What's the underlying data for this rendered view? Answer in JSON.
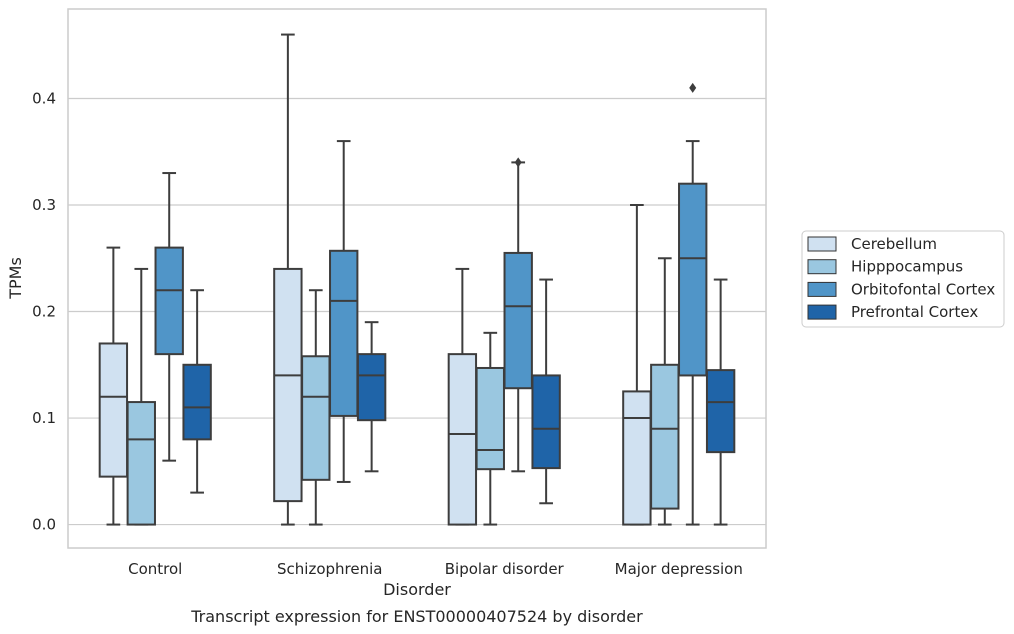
{
  "chart_data": {
    "type": "box",
    "caption": "Transcript expression for ENST00000407524 by disorder",
    "xlabel": "Disorder",
    "ylabel": "TPMs",
    "ylim": [
      -0.022,
      0.484
    ],
    "yticks": [
      0.0,
      0.1,
      0.2,
      0.3,
      0.4
    ],
    "ytick_labels": [
      "0.0",
      "0.1",
      "0.2",
      "0.3",
      "0.4"
    ],
    "grid": "horizontal",
    "legend_position": "right",
    "categories": [
      "Control",
      "Schizophrenia",
      "Bipolar disorder",
      "Major depression"
    ],
    "series": [
      {
        "name": "Cerebellum",
        "color": "#d0e1f1",
        "boxes": [
          {
            "whisker_low": 0.0,
            "q1": 0.045,
            "median": 0.12,
            "q3": 0.17,
            "whisker_high": 0.26,
            "outliers": []
          },
          {
            "whisker_low": 0.0,
            "q1": 0.022,
            "median": 0.14,
            "q3": 0.24,
            "whisker_high": 0.46,
            "outliers": []
          },
          {
            "whisker_low": 0.0,
            "q1": 0.0,
            "median": 0.085,
            "q3": 0.16,
            "whisker_high": 0.24,
            "outliers": []
          },
          {
            "whisker_low": 0.0,
            "q1": 0.0,
            "median": 0.1,
            "q3": 0.125,
            "whisker_high": 0.3,
            "outliers": []
          }
        ]
      },
      {
        "name": "Hipppocampus",
        "color": "#9ac7e0",
        "boxes": [
          {
            "whisker_low": 0.0,
            "q1": 0.0,
            "median": 0.08,
            "q3": 0.115,
            "whisker_high": 0.24,
            "outliers": []
          },
          {
            "whisker_low": 0.0,
            "q1": 0.042,
            "median": 0.12,
            "q3": 0.158,
            "whisker_high": 0.22,
            "outliers": []
          },
          {
            "whisker_low": 0.0,
            "q1": 0.052,
            "median": 0.07,
            "q3": 0.147,
            "whisker_high": 0.18,
            "outliers": []
          },
          {
            "whisker_low": 0.0,
            "q1": 0.015,
            "median": 0.09,
            "q3": 0.15,
            "whisker_high": 0.25,
            "outliers": []
          }
        ]
      },
      {
        "name": "Orbitofontal Cortex",
        "color": "#5095c8",
        "boxes": [
          {
            "whisker_low": 0.06,
            "q1": 0.16,
            "median": 0.22,
            "q3": 0.26,
            "whisker_high": 0.33,
            "outliers": []
          },
          {
            "whisker_low": 0.04,
            "q1": 0.102,
            "median": 0.21,
            "q3": 0.257,
            "whisker_high": 0.36,
            "outliers": []
          },
          {
            "whisker_low": 0.05,
            "q1": 0.128,
            "median": 0.205,
            "q3": 0.255,
            "whisker_high": 0.34,
            "outliers": []
          },
          {
            "whisker_low": 0.0,
            "q1": 0.14,
            "median": 0.25,
            "q3": 0.32,
            "whisker_high": 0.36,
            "outliers": []
          }
        ]
      },
      {
        "name": "Prefrontal Cortex",
        "color": "#1f64a8",
        "boxes": [
          {
            "whisker_low": 0.03,
            "q1": 0.08,
            "median": 0.11,
            "q3": 0.15,
            "whisker_high": 0.22,
            "outliers": []
          },
          {
            "whisker_low": 0.05,
            "q1": 0.098,
            "median": 0.14,
            "q3": 0.16,
            "whisker_high": 0.19,
            "outliers": []
          },
          {
            "whisker_low": 0.02,
            "q1": 0.053,
            "median": 0.09,
            "q3": 0.14,
            "whisker_high": 0.23,
            "outliers": []
          },
          {
            "whisker_low": 0.0,
            "q1": 0.068,
            "median": 0.115,
            "q3": 0.145,
            "whisker_high": 0.23,
            "outliers": []
          }
        ]
      }
    ],
    "outlier_points": [
      {
        "category": "Bipolar disorder",
        "series": "Orbitofontal Cortex",
        "y": 0.34
      },
      {
        "category": "Major depression",
        "series": "Orbitofontal Cortex",
        "y": 0.41
      }
    ]
  }
}
